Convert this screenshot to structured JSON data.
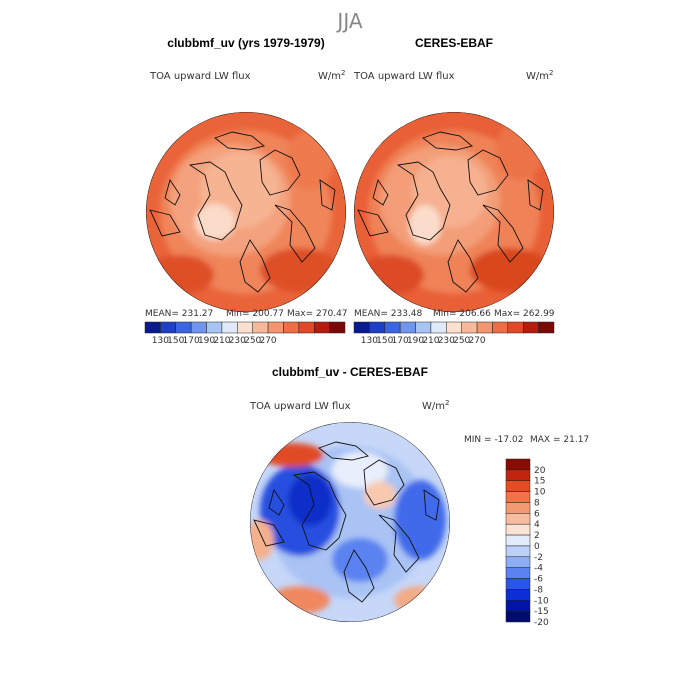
{
  "figure": {
    "title": "JJA"
  },
  "chart_data": [
    {
      "type": "heatmap",
      "projection": "north-polar-stereographic",
      "title": "clubbmf_uv (yrs 1979-1979)",
      "variable": "TOA upward LW flux",
      "units_base": "W/m",
      "units_exp": "2",
      "stats": {
        "mean_label": "MEAN=",
        "mean": "231.27",
        "min_label": "Min=",
        "min": "200.77",
        "max_label": "Max=",
        "max": "270.47"
      },
      "colorbar": {
        "orientation": "horizontal",
        "ticks": [
          "130",
          "150",
          "170",
          "190",
          "210",
          "230",
          "250",
          "270"
        ]
      }
    },
    {
      "type": "heatmap",
      "projection": "north-polar-stereographic",
      "title": "CERES-EBAF",
      "variable": "TOA upward LW flux",
      "units_base": "W/m",
      "units_exp": "2",
      "stats": {
        "mean_label": "MEAN=",
        "mean": "233.48",
        "min_label": "Min=",
        "min": "206.66",
        "max_label": "Max=",
        "max": "262.99"
      },
      "colorbar": {
        "orientation": "horizontal",
        "ticks": [
          "130",
          "150",
          "170",
          "190",
          "210",
          "230",
          "250",
          "270"
        ]
      }
    },
    {
      "type": "heatmap",
      "projection": "north-polar-stereographic",
      "title": "clubbmf_uv - CERES-EBAF",
      "variable": "TOA upward LW flux",
      "units_base": "W/m",
      "units_exp": "2",
      "stats": {
        "min_label": "MIN =",
        "min": "-17.02",
        "max_label": "MAX =",
        "max": "21.17"
      },
      "colorbar": {
        "orientation": "vertical",
        "ticks": [
          "20",
          "15",
          "10",
          "8",
          "6",
          "4",
          "2",
          "0",
          "-2",
          "-4",
          "-6",
          "-8",
          "-10",
          "-15",
          "-20"
        ]
      }
    }
  ],
  "colors": {
    "abs_scale": [
      "#0a1a8c",
      "#1f3fc4",
      "#3a66e0",
      "#6f95ef",
      "#a8c4f5",
      "#dfe9fa",
      "#fbe0d0",
      "#f7b99a",
      "#f3956e",
      "#ee6e45",
      "#e04a26",
      "#b41c0e",
      "#7a0a05"
    ],
    "diff_scale": [
      "#000b6e",
      "#0015a8",
      "#0a2fd6",
      "#2a55ea",
      "#5a82f0",
      "#8caef4",
      "#bcd0f8",
      "#e3ecfb",
      "#fbe3d5",
      "#f8bd9f",
      "#f49a72",
      "#ef7448",
      "#e44d24",
      "#c0250d",
      "#8a0b02"
    ]
  }
}
